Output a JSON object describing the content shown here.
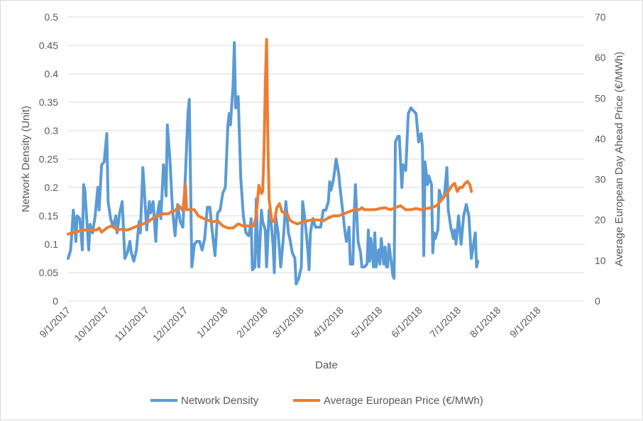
{
  "chart_data": {
    "type": "line",
    "title": "",
    "xlabel": "Date",
    "ylabel": "Network Density (Unit)",
    "y2label": "Average European Day Ahead Price (€/MWh)",
    "ylim": [
      0,
      0.5
    ],
    "y2lim": [
      0,
      70
    ],
    "yticks": [
      "0",
      "0.05",
      "0.1",
      "0.15",
      "0.2",
      "0.25",
      "0.3",
      "0.35",
      "0.4",
      "0.45",
      "0.5"
    ],
    "y2ticks": [
      "0",
      "10",
      "20",
      "30",
      "40",
      "50",
      "60",
      "70"
    ],
    "x_range_days": [
      0,
      401
    ],
    "x_ticks": [
      {
        "label": "9/1/2017",
        "day": 0
      },
      {
        "label": "10/1/2017",
        "day": 30
      },
      {
        "label": "11/1/2017",
        "day": 61
      },
      {
        "label": "12/1/2017",
        "day": 91
      },
      {
        "label": "1/1/2018",
        "day": 122
      },
      {
        "label": "2/1/2018",
        "day": 153
      },
      {
        "label": "3/1/2018",
        "day": 181
      },
      {
        "label": "4/1/2018",
        "day": 212
      },
      {
        "label": "5/1/2018",
        "day": 242
      },
      {
        "label": "6/1/2018",
        "day": 273
      },
      {
        "label": "7/1/2018",
        "day": 303
      },
      {
        "label": "8/1/2018",
        "day": 334
      },
      {
        "label": "9/1/2018",
        "day": 365
      }
    ],
    "legend": [
      {
        "name": "Network Density",
        "color": "#5B9BD5"
      },
      {
        "name": "Average European Price (€/MWh)",
        "color": "#ED7D31"
      }
    ],
    "series": [
      {
        "name": "Network Density",
        "axis": "left",
        "color": "#5B9BD5",
        "points": [
          [
            0,
            0.075
          ],
          [
            2,
            0.09
          ],
          [
            4,
            0.16
          ],
          [
            5,
            0.14
          ],
          [
            6,
            0.105
          ],
          [
            7,
            0.15
          ],
          [
            9,
            0.145
          ],
          [
            10,
            0.12
          ],
          [
            11,
            0.09
          ],
          [
            12,
            0.205
          ],
          [
            13,
            0.195
          ],
          [
            14,
            0.16
          ],
          [
            16,
            0.09
          ],
          [
            17,
            0.135
          ],
          [
            19,
            0.12
          ],
          [
            21,
            0.15
          ],
          [
            23,
            0.2
          ],
          [
            24,
            0.16
          ],
          [
            26,
            0.24
          ],
          [
            28,
            0.245
          ],
          [
            30,
            0.295
          ],
          [
            31,
            0.175
          ],
          [
            33,
            0.145
          ],
          [
            35,
            0.13
          ],
          [
            37,
            0.15
          ],
          [
            38,
            0.12
          ],
          [
            40,
            0.155
          ],
          [
            42,
            0.175
          ],
          [
            44,
            0.075
          ],
          [
            46,
            0.085
          ],
          [
            48,
            0.105
          ],
          [
            49,
            0.085
          ],
          [
            51,
            0.07
          ],
          [
            53,
            0.09
          ],
          [
            55,
            0.14
          ],
          [
            56,
            0.12
          ],
          [
            58,
            0.235
          ],
          [
            59,
            0.2
          ],
          [
            61,
            0.125
          ],
          [
            63,
            0.175
          ],
          [
            64,
            0.155
          ],
          [
            66,
            0.175
          ],
          [
            68,
            0.105
          ],
          [
            69,
            0.15
          ],
          [
            71,
            0.175
          ],
          [
            72,
            0.145
          ],
          [
            74,
            0.24
          ],
          [
            75,
            0.22
          ],
          [
            76,
            0.185
          ],
          [
            77,
            0.31
          ],
          [
            79,
            0.25
          ],
          [
            81,
            0.16
          ],
          [
            83,
            0.115
          ],
          [
            85,
            0.17
          ],
          [
            87,
            0.14
          ],
          [
            89,
            0.13
          ],
          [
            91,
            0.22
          ],
          [
            93,
            0.33
          ],
          [
            94,
            0.355
          ],
          [
            96,
            0.06
          ],
          [
            98,
            0.1
          ],
          [
            100,
            0.105
          ],
          [
            102,
            0.105
          ],
          [
            104,
            0.09
          ],
          [
            106,
            0.11
          ],
          [
            108,
            0.165
          ],
          [
            110,
            0.165
          ],
          [
            112,
            0.12
          ],
          [
            114,
            0.08
          ],
          [
            116,
            0.155
          ],
          [
            118,
            0.16
          ],
          [
            120,
            0.19
          ],
          [
            122,
            0.2
          ],
          [
            124,
            0.31
          ],
          [
            125,
            0.33
          ],
          [
            126,
            0.31
          ],
          [
            128,
            0.38
          ],
          [
            129,
            0.455
          ],
          [
            130,
            0.34
          ],
          [
            132,
            0.36
          ],
          [
            134,
            0.215
          ],
          [
            136,
            0.15
          ],
          [
            138,
            0.12
          ],
          [
            140,
            0.115
          ],
          [
            141,
            0.125
          ],
          [
            142,
            0.145
          ],
          [
            143,
            0.055
          ],
          [
            145,
            0.06
          ],
          [
            146,
            0.18
          ],
          [
            147,
            0.1
          ],
          [
            148,
            0.06
          ],
          [
            150,
            0.16
          ],
          [
            151,
            0.14
          ],
          [
            153,
            0.125
          ],
          [
            154,
            0.06
          ],
          [
            156,
            0.16
          ],
          [
            157,
            0.15
          ],
          [
            159,
            0.1
          ],
          [
            160,
            0.05
          ],
          [
            161,
            0.15
          ],
          [
            163,
            0.12
          ],
          [
            165,
            0.06
          ],
          [
            167,
            0.11
          ],
          [
            169,
            0.175
          ],
          [
            171,
            0.12
          ],
          [
            172,
            0.11
          ],
          [
            174,
            0.085
          ],
          [
            176,
            0.075
          ],
          [
            177,
            0.03
          ],
          [
            179,
            0.04
          ],
          [
            181,
            0.06
          ],
          [
            182,
            0.175
          ],
          [
            184,
            0.14
          ],
          [
            186,
            0.09
          ],
          [
            187,
            0.055
          ],
          [
            188,
            0.12
          ],
          [
            190,
            0.145
          ],
          [
            192,
            0.13
          ],
          [
            194,
            0.13
          ],
          [
            196,
            0.13
          ],
          [
            198,
            0.16
          ],
          [
            200,
            0.16
          ],
          [
            202,
            0.175
          ],
          [
            203,
            0.21
          ],
          [
            204,
            0.195
          ],
          [
            206,
            0.215
          ],
          [
            208,
            0.25
          ],
          [
            210,
            0.225
          ],
          [
            211,
            0.2
          ],
          [
            213,
            0.16
          ],
          [
            215,
            0.12
          ],
          [
            216,
            0.105
          ],
          [
            218,
            0.13
          ],
          [
            219,
            0.065
          ],
          [
            221,
            0.065
          ],
          [
            222,
            0.15
          ],
          [
            223,
            0.205
          ],
          [
            225,
            0.105
          ],
          [
            227,
            0.085
          ],
          [
            228,
            0.06
          ],
          [
            230,
            0.06
          ],
          [
            232,
            0.065
          ],
          [
            233,
            0.125
          ],
          [
            234,
            0.07
          ],
          [
            235,
            0.11
          ],
          [
            237,
            0.06
          ],
          [
            238,
            0.12
          ],
          [
            239,
            0.06
          ],
          [
            241,
            0.09
          ],
          [
            242,
            0.065
          ],
          [
            243,
            0.11
          ],
          [
            245,
            0.065
          ],
          [
            246,
            0.095
          ],
          [
            247,
            0.06
          ],
          [
            248,
            0.06
          ],
          [
            249,
            0.1
          ],
          [
            251,
            0.065
          ],
          [
            252,
            0.045
          ],
          [
            253,
            0.04
          ],
          [
            254,
            0.28
          ],
          [
            256,
            0.29
          ],
          [
            257,
            0.29
          ],
          [
            259,
            0.2
          ],
          [
            260,
            0.24
          ],
          [
            262,
            0.23
          ],
          [
            264,
            0.33
          ],
          [
            266,
            0.34
          ],
          [
            268,
            0.335
          ],
          [
            270,
            0.33
          ],
          [
            272,
            0.28
          ],
          [
            274,
            0.295
          ],
          [
            275,
            0.27
          ],
          [
            276,
            0.08
          ],
          [
            277,
            0.245
          ],
          [
            279,
            0.205
          ],
          [
            280,
            0.22
          ],
          [
            282,
            0.205
          ],
          [
            283,
            0.085
          ],
          [
            284,
            0.12
          ],
          [
            285,
            0.11
          ],
          [
            287,
            0.125
          ],
          [
            288,
            0.195
          ],
          [
            290,
            0.18
          ],
          [
            292,
            0.185
          ],
          [
            294,
            0.235
          ],
          [
            295,
            0.16
          ],
          [
            297,
            0.13
          ],
          [
            299,
            0.11
          ],
          [
            300,
            0.125
          ],
          [
            301,
            0.1
          ],
          [
            303,
            0.15
          ],
          [
            305,
            0.1
          ],
          [
            307,
            0.15
          ],
          [
            309,
            0.17
          ],
          [
            311,
            0.15
          ],
          [
            313,
            0.075
          ],
          [
            314,
            0.09
          ],
          [
            316,
            0.12
          ],
          [
            317,
            0.06
          ],
          [
            318,
            0.07
          ]
        ]
      },
      {
        "name": "Average European Price (€/MWh)",
        "axis": "right",
        "color": "#ED7D31",
        "points": [
          [
            0,
            16.5
          ],
          [
            6,
            17
          ],
          [
            12,
            17.5
          ],
          [
            18,
            17.5
          ],
          [
            22,
            17.5
          ],
          [
            24,
            18
          ],
          [
            26,
            17
          ],
          [
            30,
            18
          ],
          [
            33,
            18.5
          ],
          [
            35,
            18.3
          ],
          [
            38,
            17.5
          ],
          [
            42,
            17.7
          ],
          [
            46,
            17.5
          ],
          [
            50,
            18
          ],
          [
            54,
            18.5
          ],
          [
            58,
            19
          ],
          [
            62,
            19.5
          ],
          [
            66,
            20.5
          ],
          [
            70,
            21
          ],
          [
            74,
            21.5
          ],
          [
            78,
            21.5
          ],
          [
            80,
            22
          ],
          [
            83,
            22.3
          ],
          [
            86,
            23.5
          ],
          [
            89,
            22.3
          ],
          [
            91,
            28.5
          ],
          [
            92,
            22.5
          ],
          [
            94,
            22.5
          ],
          [
            98,
            22.5
          ],
          [
            101,
            21
          ],
          [
            104,
            20.5
          ],
          [
            108,
            20
          ],
          [
            112,
            19.5
          ],
          [
            116,
            19.8
          ],
          [
            120,
            18.5
          ],
          [
            124,
            18
          ],
          [
            128,
            18
          ],
          [
            130,
            18.5
          ],
          [
            132,
            19
          ],
          [
            136,
            18.5
          ],
          [
            140,
            18.5
          ],
          [
            144,
            18.5
          ],
          [
            146,
            21
          ],
          [
            148,
            28.5
          ],
          [
            150,
            26.5
          ],
          [
            151,
            27
          ],
          [
            152,
            37
          ],
          [
            153,
            53
          ],
          [
            154,
            64.5
          ],
          [
            155,
            40
          ],
          [
            156,
            25
          ],
          [
            158,
            20
          ],
          [
            160,
            19.5
          ],
          [
            162,
            23
          ],
          [
            164,
            24
          ],
          [
            166,
            22
          ],
          [
            170,
            21.5
          ],
          [
            172,
            20
          ],
          [
            174,
            19.5
          ],
          [
            178,
            19
          ],
          [
            182,
            19.5
          ],
          [
            186,
            19.8
          ],
          [
            190,
            20
          ],
          [
            194,
            20
          ],
          [
            198,
            19.8
          ],
          [
            202,
            20.5
          ],
          [
            206,
            21
          ],
          [
            210,
            21
          ],
          [
            214,
            21.5
          ],
          [
            218,
            22
          ],
          [
            222,
            22.5
          ],
          [
            226,
            22.5
          ],
          [
            228,
            23
          ],
          [
            230,
            22.5
          ],
          [
            234,
            22.5
          ],
          [
            238,
            22.5
          ],
          [
            242,
            22.8
          ],
          [
            246,
            23
          ],
          [
            250,
            22.5
          ],
          [
            254,
            23
          ],
          [
            258,
            23.5
          ],
          [
            262,
            22.5
          ],
          [
            266,
            22.5
          ],
          [
            270,
            22.8
          ],
          [
            274,
            22.5
          ],
          [
            278,
            22.8
          ],
          [
            282,
            23
          ],
          [
            286,
            23.5
          ],
          [
            290,
            25
          ],
          [
            294,
            26.5
          ],
          [
            296,
            27.5
          ],
          [
            298,
            28.5
          ],
          [
            300,
            29
          ],
          [
            302,
            27
          ],
          [
            304,
            28
          ],
          [
            306,
            28
          ],
          [
            308,
            29
          ],
          [
            310,
            29.5
          ],
          [
            312,
            28.5
          ],
          [
            313,
            27
          ]
        ]
      }
    ]
  }
}
